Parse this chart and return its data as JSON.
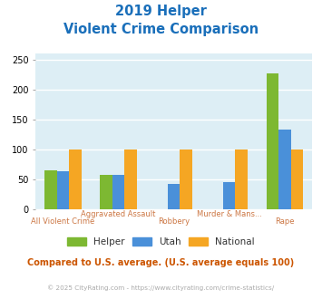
{
  "title_line1": "2019 Helper",
  "title_line2": "Violent Crime Comparison",
  "title_color": "#1a6fba",
  "categories_top": [
    "Aggravated Assault",
    "Murder & Mans..."
  ],
  "categories_bottom": [
    "All Violent Crime",
    "Robbery",
    "Rape"
  ],
  "categories_all": [
    "All Violent Crime",
    "Aggravated Assault",
    "Robbery",
    "Murder & Mans...",
    "Rape"
  ],
  "xtick_labels": [
    "All Violent Crime\n ",
    "Aggravated Assault\n ",
    "Robbery\n ",
    "Murder & Mans...\n ",
    "Rape\n "
  ],
  "series": {
    "Helper": [
      65,
      58,
      0,
      0,
      227
    ],
    "Utah": [
      63,
      57,
      43,
      45,
      134
    ],
    "National": [
      100,
      100,
      100,
      100,
      100
    ]
  },
  "colors": {
    "Helper": "#7db832",
    "Utah": "#4a90d9",
    "National": "#f5a623"
  },
  "ylim": [
    0,
    260
  ],
  "yticks": [
    0,
    50,
    100,
    150,
    200,
    250
  ],
  "plot_bg": "#ddeef5",
  "grid_color": "#ffffff",
  "xtick_color": "#cc7744",
  "footer_text": "Compared to U.S. average. (U.S. average equals 100)",
  "copyright_text": "© 2025 CityRating.com - https://www.cityrating.com/crime-statistics/",
  "footer_color": "#cc5500",
  "copyright_color": "#aaaaaa"
}
